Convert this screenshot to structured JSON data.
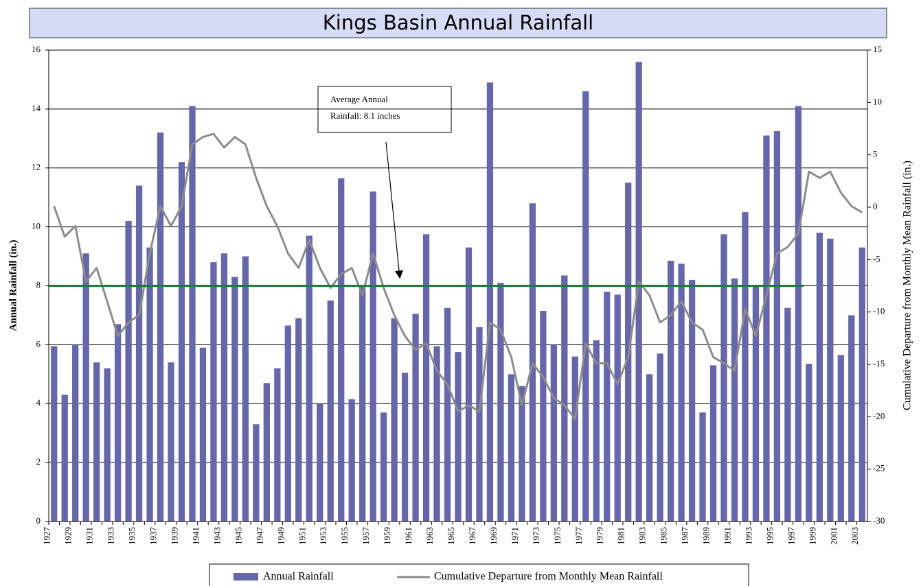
{
  "chart_data": {
    "type": "bar",
    "title": "Kings Basin Annual Rainfall",
    "y_label": "Annual Rainfall (in.)",
    "y2_label": "Cumulative Departure from Monthly Mean Rainfall (in.)",
    "categories": [
      "1927",
      null,
      "1929",
      null,
      "1931",
      null,
      "1933",
      null,
      "1935",
      null,
      "1937",
      null,
      "1939",
      null,
      "1941",
      null,
      "1943",
      null,
      "1945",
      null,
      "1947",
      null,
      "1949",
      null,
      "1951",
      null,
      "1953",
      null,
      "1955",
      null,
      "1957",
      null,
      "1959",
      null,
      "1961",
      null,
      "1963",
      null,
      "1965",
      null,
      "1967",
      null,
      "1969",
      null,
      "1971",
      null,
      "1973",
      null,
      "1975",
      null,
      "1977",
      null,
      "1979",
      null,
      "1981",
      null,
      "1983",
      null,
      "1985",
      null,
      "1987",
      null,
      "1989",
      null,
      "1991",
      null,
      "1993",
      null,
      "1995",
      null,
      "1997",
      null,
      "1999",
      null,
      "2001",
      null,
      "2003"
    ],
    "series": [
      {
        "name": "Annual Rainfall",
        "color": "#6666aa",
        "values": [
          5.95,
          4.3,
          6.0,
          9.1,
          5.4,
          5.2,
          6.7,
          10.2,
          11.4,
          9.3,
          13.2,
          5.4,
          12.2,
          14.1,
          5.9,
          8.8,
          9.1,
          8.3,
          9.0,
          3.3,
          4.7,
          5.2,
          6.65,
          6.9,
          9.7,
          4.0,
          7.5,
          11.65,
          4.15,
          8.0,
          11.2,
          3.7,
          6.9,
          5.05,
          7.05,
          9.75,
          5.95,
          7.25,
          5.75,
          9.3,
          6.6,
          14.9,
          8.1,
          5.0,
          4.6,
          10.8,
          7.15,
          6.0,
          8.35,
          5.6,
          14.6,
          6.15,
          7.8,
          7.7,
          11.5,
          15.6,
          5.0,
          5.7,
          8.85,
          8.75,
          8.2,
          3.7,
          5.3,
          9.75,
          8.25,
          10.5,
          8.0,
          13.1,
          13.25,
          7.25,
          14.1,
          5.35,
          9.8,
          9.6,
          5.65,
          7.0,
          9.3
        ]
      },
      {
        "name": "Cumulative Departure from Monthly Mean Rainfall",
        "color": "#8c8c8c",
        "axis": "y2",
        "values": [
          0.1,
          -2.8,
          -1.8,
          -7.1,
          -5.8,
          -9.0,
          -12.3,
          -11.0,
          -10.3,
          -4.4,
          0.1,
          -1.8,
          0.1,
          6.0,
          6.7,
          7.0,
          5.7,
          6.7,
          6.0,
          2.8,
          0.1,
          -1.8,
          -4.4,
          -5.8,
          -3.1,
          -5.8,
          -7.7,
          -6.4,
          -5.8,
          -8.4,
          -4.4,
          -7.7,
          -10.3,
          -12.3,
          -13.6,
          -13.0,
          -15.6,
          -16.9,
          -19.5,
          -18.9,
          -19.5,
          -11.0,
          -11.7,
          -14.3,
          -18.9,
          -14.9,
          -16.2,
          -18.2,
          -18.9,
          -20.2,
          -13.0,
          -14.9,
          -14.9,
          -16.9,
          -14.3,
          -7.1,
          -8.4,
          -11.0,
          -10.3,
          -9.0,
          -11.0,
          -11.7,
          -14.3,
          -14.9,
          -15.6,
          -9.7,
          -12.3,
          -8.4,
          -4.4,
          -3.8,
          -2.5,
          3.4,
          2.8,
          3.4,
          1.4,
          0.1,
          -0.5
        ]
      }
    ],
    "ylim": [
      0,
      16
    ],
    "yticks": [
      0,
      2,
      4,
      6,
      8,
      10,
      12,
      14,
      16
    ],
    "y2lim": [
      -30,
      15
    ],
    "y2ticks": [
      -30,
      -25,
      -20,
      -15,
      -10,
      -5,
      0,
      5,
      10,
      15
    ],
    "grid": true,
    "average_line": {
      "value": 8,
      "color": "#1f7a3c",
      "span": [
        "1927",
        "1997"
      ]
    },
    "annotation": [
      "Average Annual",
      "Rainfall: 8.1 inches"
    ]
  }
}
